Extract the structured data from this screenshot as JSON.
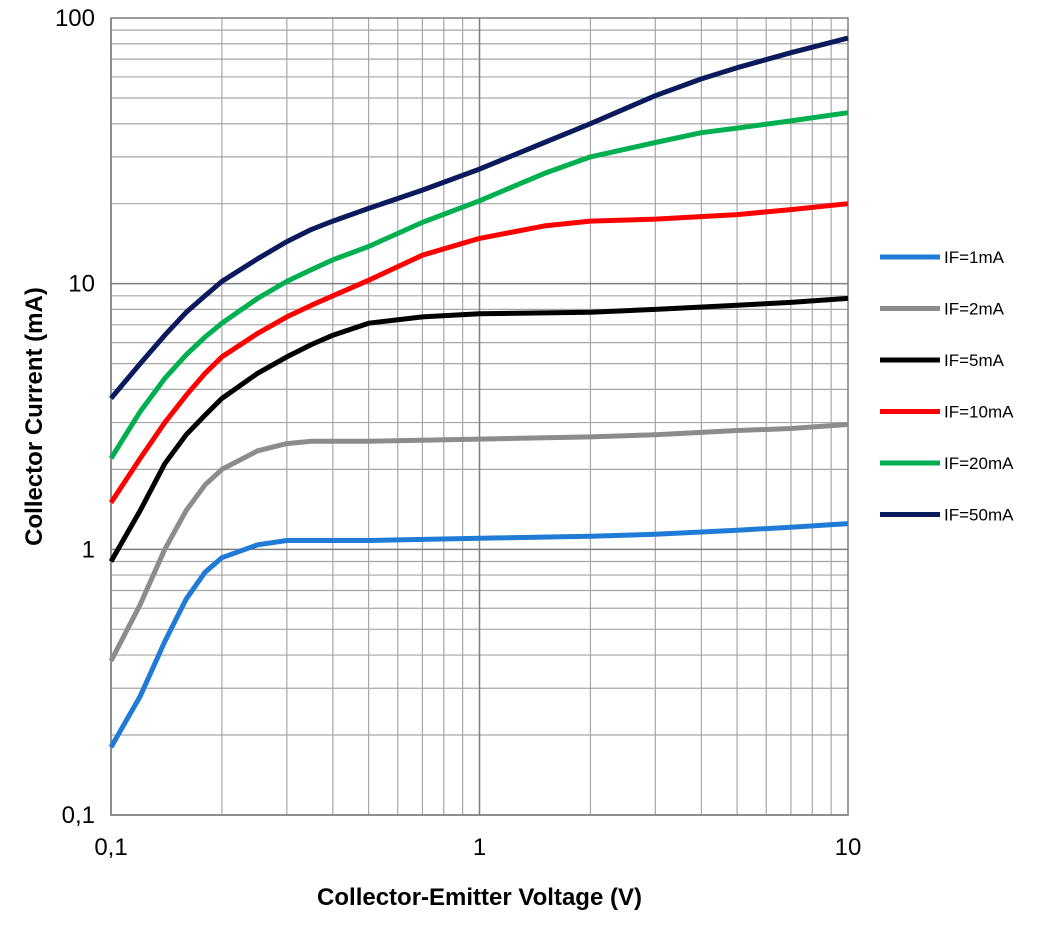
{
  "chart_data": {
    "type": "line",
    "title": "",
    "xlabel": "Collector-Emitter Voltage (V)",
    "ylabel": "Collector Current  (mA)",
    "xscale": "log",
    "yscale": "log",
    "xlim": [
      0.1,
      10
    ],
    "ylim": [
      0.1,
      100
    ],
    "x_ticks": [
      "0,1",
      "1",
      "10"
    ],
    "y_ticks": [
      "0,1",
      "1",
      "10",
      "100"
    ],
    "grid": true,
    "legend_position": "right",
    "series": [
      {
        "name": "IF=1mA",
        "color": "#1f7bd6",
        "points": [
          [
            0.1,
            0.18
          ],
          [
            0.12,
            0.28
          ],
          [
            0.14,
            0.45
          ],
          [
            0.16,
            0.65
          ],
          [
            0.18,
            0.82
          ],
          [
            0.2,
            0.93
          ],
          [
            0.25,
            1.04
          ],
          [
            0.3,
            1.08
          ],
          [
            0.5,
            1.08
          ],
          [
            1,
            1.1
          ],
          [
            2,
            1.12
          ],
          [
            3,
            1.14
          ],
          [
            5,
            1.18
          ],
          [
            7,
            1.21
          ],
          [
            10,
            1.25
          ]
        ]
      },
      {
        "name": "IF=2mA",
        "color": "#8c8c8c",
        "points": [
          [
            0.1,
            0.38
          ],
          [
            0.12,
            0.62
          ],
          [
            0.14,
            1.0
          ],
          [
            0.16,
            1.4
          ],
          [
            0.18,
            1.75
          ],
          [
            0.2,
            2.0
          ],
          [
            0.25,
            2.35
          ],
          [
            0.3,
            2.5
          ],
          [
            0.35,
            2.55
          ],
          [
            0.5,
            2.55
          ],
          [
            1,
            2.6
          ],
          [
            2,
            2.65
          ],
          [
            3,
            2.7
          ],
          [
            5,
            2.8
          ],
          [
            7,
            2.85
          ],
          [
            10,
            2.95
          ]
        ]
      },
      {
        "name": "IF=5mA",
        "color": "#000000",
        "points": [
          [
            0.1,
            0.9
          ],
          [
            0.12,
            1.4
          ],
          [
            0.14,
            2.1
          ],
          [
            0.16,
            2.7
          ],
          [
            0.18,
            3.2
          ],
          [
            0.2,
            3.7
          ],
          [
            0.25,
            4.6
          ],
          [
            0.3,
            5.3
          ],
          [
            0.35,
            5.9
          ],
          [
            0.4,
            6.4
          ],
          [
            0.5,
            7.1
          ],
          [
            0.7,
            7.5
          ],
          [
            1,
            7.7
          ],
          [
            2,
            7.8
          ],
          [
            3,
            8.0
          ],
          [
            5,
            8.3
          ],
          [
            7,
            8.5
          ],
          [
            10,
            8.8
          ]
        ]
      },
      {
        "name": "IF=10mA",
        "color": "#ff0000",
        "points": [
          [
            0.1,
            1.5
          ],
          [
            0.12,
            2.2
          ],
          [
            0.14,
            3.0
          ],
          [
            0.16,
            3.8
          ],
          [
            0.18,
            4.6
          ],
          [
            0.2,
            5.3
          ],
          [
            0.25,
            6.5
          ],
          [
            0.3,
            7.5
          ],
          [
            0.35,
            8.3
          ],
          [
            0.4,
            9.0
          ],
          [
            0.5,
            10.3
          ],
          [
            0.7,
            12.8
          ],
          [
            1,
            14.8
          ],
          [
            1.5,
            16.5
          ],
          [
            2,
            17.2
          ],
          [
            3,
            17.5
          ],
          [
            5,
            18.2
          ],
          [
            7,
            19.0
          ],
          [
            10,
            20.0
          ]
        ]
      },
      {
        "name": "IF=20mA",
        "color": "#00b050",
        "points": [
          [
            0.1,
            2.2
          ],
          [
            0.12,
            3.3
          ],
          [
            0.14,
            4.4
          ],
          [
            0.16,
            5.4
          ],
          [
            0.18,
            6.3
          ],
          [
            0.2,
            7.1
          ],
          [
            0.25,
            8.8
          ],
          [
            0.3,
            10.2
          ],
          [
            0.35,
            11.3
          ],
          [
            0.4,
            12.3
          ],
          [
            0.5,
            13.8
          ],
          [
            0.7,
            17.0
          ],
          [
            1,
            20.5
          ],
          [
            1.5,
            26.0
          ],
          [
            2,
            30.0
          ],
          [
            3,
            34.0
          ],
          [
            4,
            37.0
          ],
          [
            5,
            38.5
          ],
          [
            7,
            41.0
          ],
          [
            10,
            44.0
          ]
        ]
      },
      {
        "name": "IF=50mA",
        "color": "#0b1a5c",
        "points": [
          [
            0.1,
            3.7
          ],
          [
            0.12,
            5.0
          ],
          [
            0.14,
            6.4
          ],
          [
            0.16,
            7.8
          ],
          [
            0.18,
            9.0
          ],
          [
            0.2,
            10.2
          ],
          [
            0.25,
            12.4
          ],
          [
            0.3,
            14.4
          ],
          [
            0.35,
            16.0
          ],
          [
            0.4,
            17.2
          ],
          [
            0.5,
            19.2
          ],
          [
            0.7,
            22.5
          ],
          [
            1,
            27.0
          ],
          [
            1.5,
            34.0
          ],
          [
            2,
            40.0
          ],
          [
            3,
            51.0
          ],
          [
            4,
            59.0
          ],
          [
            5,
            65.0
          ],
          [
            7,
            74.0
          ],
          [
            10,
            84.0
          ]
        ]
      }
    ]
  }
}
